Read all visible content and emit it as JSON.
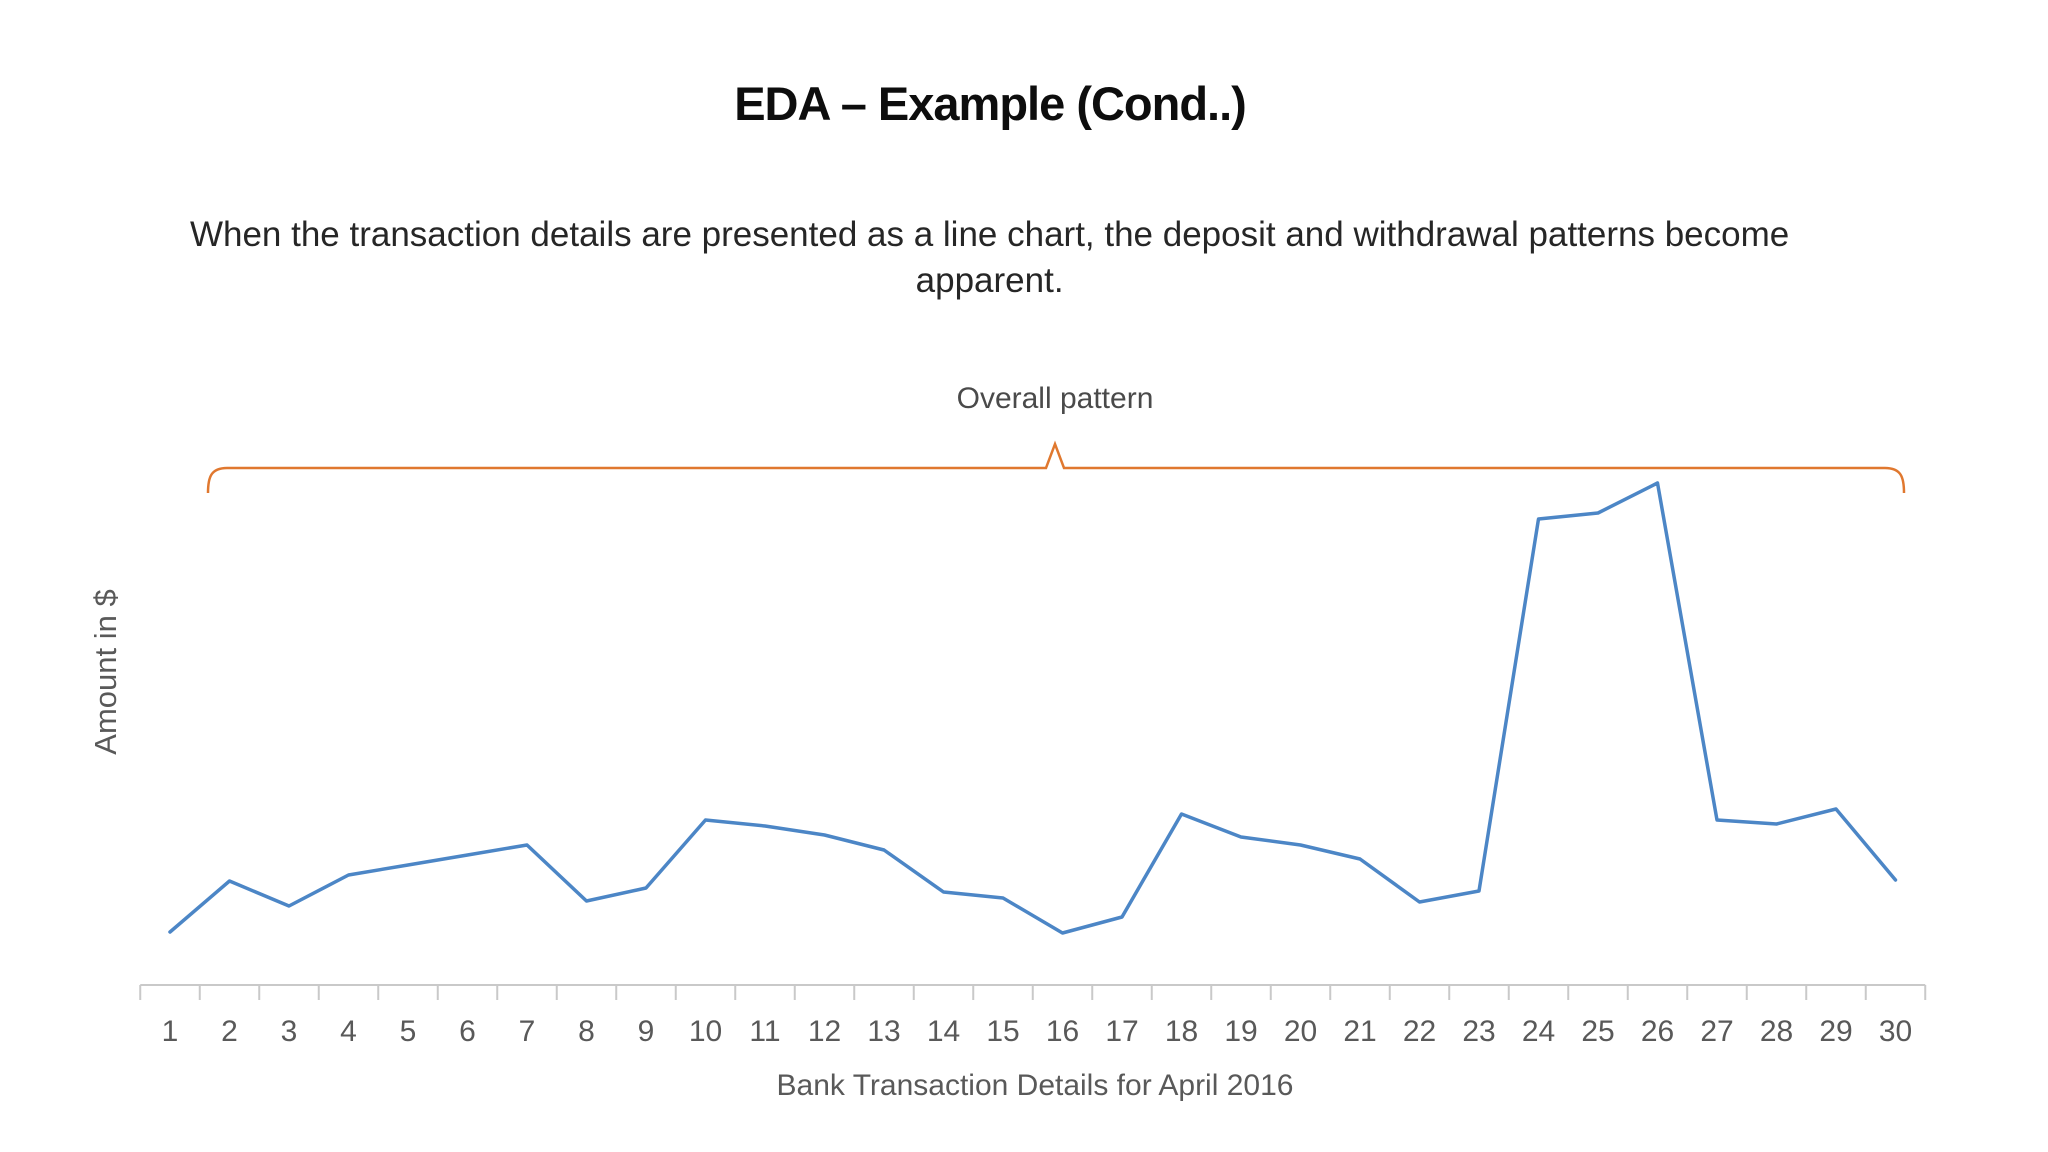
{
  "slide": {
    "title": "EDA – Example (Cond..)",
    "subtitle": "When the transaction details are presented as a line chart, the deposit and withdrawal patterns become apparent."
  },
  "chart_data": {
    "type": "line",
    "title": "",
    "xlabel": "Bank Transaction Details for April 2016",
    "ylabel": "Amount in $",
    "annotation": "Overall pattern",
    "annotation_note": "orange brace spanning all 30 days beneath the label",
    "categories": [
      1,
      2,
      3,
      4,
      5,
      6,
      7,
      8,
      9,
      10,
      11,
      12,
      13,
      14,
      15,
      16,
      17,
      18,
      19,
      20,
      21,
      22,
      23,
      24,
      25,
      26,
      27,
      28,
      29,
      30
    ],
    "series": [
      {
        "name": "Amount in $",
        "values": [
          53,
          104,
          79,
          110,
          120,
          130,
          140,
          84,
          97,
          165,
          159,
          150,
          135,
          93,
          87,
          52,
          68,
          171,
          148,
          140,
          126,
          83,
          94,
          466,
          472,
          502,
          165,
          161,
          176,
          105
        ]
      }
    ],
    "ylim": [
      0,
      530
    ],
    "y_tick_labels": [],
    "grid": false,
    "legend_position": "none"
  },
  "colors": {
    "line": "#4c86c6",
    "brace": "#e0782f",
    "axis": "#c9c9c9",
    "tick_text": "#595959",
    "axis_title_text": "#595959",
    "annotation_text": "#4a4a4a",
    "title_text": "#0d0d0d",
    "subtitle_text": "#262626",
    "background": "#ffffff"
  }
}
